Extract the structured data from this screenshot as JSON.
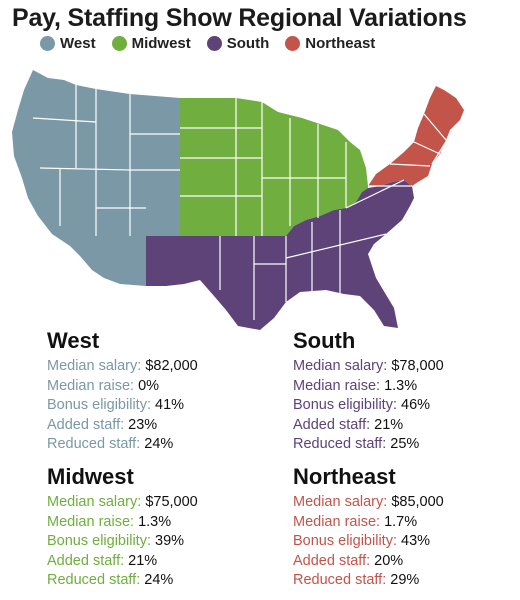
{
  "title": "Pay, Staffing Show Regional Variations",
  "colors": {
    "west": "#7a98a6",
    "midwest": "#6fae3f",
    "south": "#5e4378",
    "northeast": "#c2544a",
    "border": "#ffffff"
  },
  "legend": [
    {
      "label": "West",
      "color": "#7a98a6"
    },
    {
      "label": "Midwest",
      "color": "#6fae3f"
    },
    {
      "label": "South",
      "color": "#5e4378"
    },
    {
      "label": "Northeast",
      "color": "#c2544a"
    }
  ],
  "regions": {
    "west": {
      "name": "West",
      "color": "#7a98a6",
      "median_salary_label": "Median salary:",
      "median_salary": "$82,000",
      "median_raise_label": "Median raise:",
      "median_raise": "0%",
      "bonus_label": "Bonus eligibility:",
      "bonus": "41%",
      "added_label": "Added staff:",
      "added": "23%",
      "reduced_label": "Reduced staff:",
      "reduced": "24%"
    },
    "south": {
      "name": "South",
      "color": "#5e4378",
      "median_salary_label": "Median salary:",
      "median_salary": "$78,000",
      "median_raise_label": "Median raise:",
      "median_raise": "1.3%",
      "bonus_label": "Bonus eligibility:",
      "bonus": "46%",
      "added_label": "Added staff:",
      "added": "21%",
      "reduced_label": "Reduced staff:",
      "reduced": "25%"
    },
    "midwest": {
      "name": "Midwest",
      "color": "#6fae3f",
      "median_salary_label": "Median salary:",
      "median_salary": "$75,000",
      "median_raise_label": "Median raise:",
      "median_raise": "1.3%",
      "bonus_label": "Bonus eligibility:",
      "bonus": "39%",
      "added_label": "Added staff:",
      "added": "21%",
      "reduced_label": "Reduced staff:",
      "reduced": "24%"
    },
    "northeast": {
      "name": "Northeast",
      "color": "#c2544a",
      "median_salary_label": "Median salary:",
      "median_salary": "$85,000",
      "median_raise_label": "Median raise:",
      "median_raise": "1.7%",
      "bonus_label": "Bonus eligibility:",
      "bonus": "43%",
      "added_label": "Added staff:",
      "added": "20%",
      "reduced_label": "Reduced staff:",
      "reduced": "29%"
    }
  }
}
